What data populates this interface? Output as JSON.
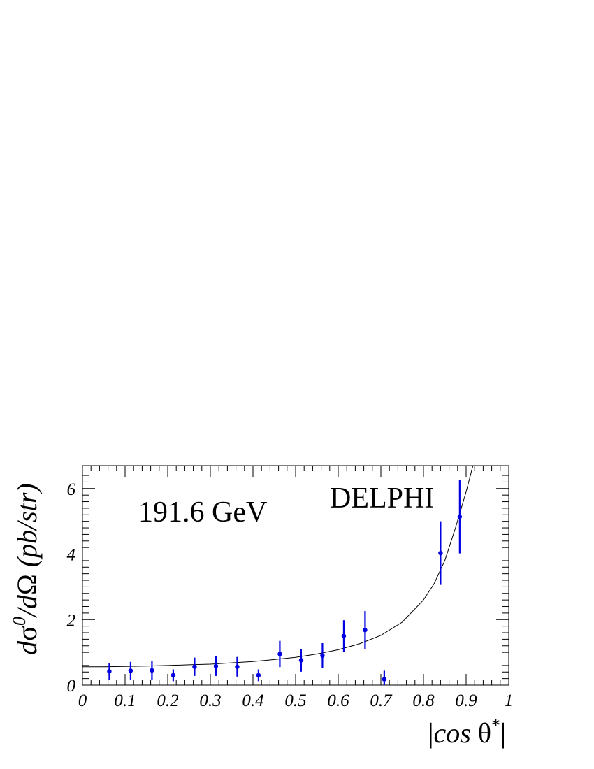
{
  "chart_data": {
    "type": "scatter",
    "title": "",
    "xlabel": "|cos θ*|",
    "ylabel": "dσ0/dΩ (pb/str)",
    "xlim": [
      0,
      1
    ],
    "ylim": [
      0,
      6.7
    ],
    "xticks": [
      0,
      0.1,
      0.2,
      0.3,
      0.4,
      0.5,
      0.6,
      0.7,
      0.8,
      0.9,
      1
    ],
    "xtick_labels": [
      "0",
      "0.1",
      "0.2",
      "0.3",
      "0.4",
      "0.5",
      "0.6",
      "0.7",
      "0.8",
      "0.9",
      "1"
    ],
    "yticks": [
      0,
      2,
      4,
      6
    ],
    "ytick_labels": [
      "0",
      "2",
      "4",
      "6"
    ],
    "grid": false,
    "annotations": [
      {
        "text": "191.6 GeV",
        "x": 0.3,
        "y": 5.4
      },
      {
        "text": "DELPHI",
        "x": 0.67,
        "y": 5.7
      }
    ],
    "series": [
      {
        "kind": "points-with-errors",
        "color": "#0000e0",
        "x": [
          0.063,
          0.113,
          0.163,
          0.213,
          0.263,
          0.313,
          0.363,
          0.413,
          0.463,
          0.513,
          0.563,
          0.613,
          0.663,
          0.708,
          0.84,
          0.885
        ],
        "y": [
          0.42,
          0.44,
          0.45,
          0.3,
          0.56,
          0.58,
          0.56,
          0.3,
          0.95,
          0.76,
          0.9,
          1.5,
          1.68,
          0.18,
          4.03,
          5.14
        ],
        "yerr": [
          0.26,
          0.27,
          0.28,
          0.18,
          0.28,
          0.3,
          0.3,
          0.18,
          0.4,
          0.35,
          0.38,
          0.48,
          0.58,
          0.26,
          0.97,
          1.12
        ]
      },
      {
        "kind": "fit-curve",
        "color": "#000000",
        "x": [
          0,
          0.05,
          0.1,
          0.15,
          0.2,
          0.25,
          0.3,
          0.35,
          0.4,
          0.45,
          0.5,
          0.55,
          0.6,
          0.65,
          0.7,
          0.75,
          0.8,
          0.825,
          0.85,
          0.875,
          0.9,
          0.91,
          0.92
        ],
        "y": [
          0.56,
          0.56,
          0.57,
          0.58,
          0.6,
          0.62,
          0.64,
          0.68,
          0.72,
          0.78,
          0.85,
          0.95,
          1.08,
          1.26,
          1.52,
          1.92,
          2.6,
          3.1,
          3.8,
          4.8,
          5.9,
          6.4,
          6.9
        ]
      }
    ]
  }
}
